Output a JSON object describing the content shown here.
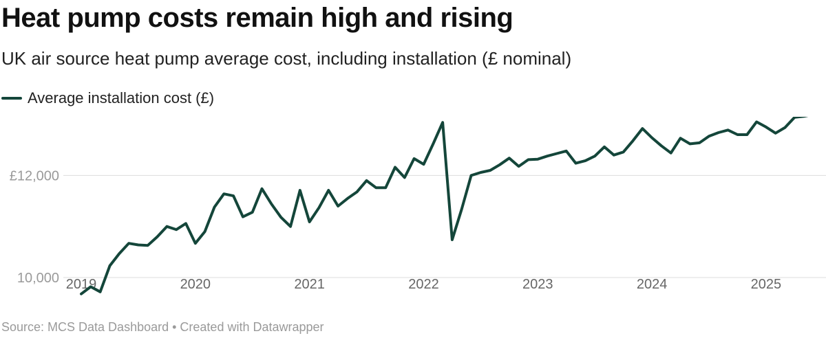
{
  "header": {
    "title": "Heat pump costs remain high and rising",
    "subtitle": "UK air source heat pump average cost, including installation (£ nominal)"
  },
  "legend": {
    "label": "Average installation cost (£)",
    "color": "#14463a"
  },
  "footer": {
    "text": "Source: MCS Data Dashboard • Created with Datawrapper"
  },
  "chart_data": {
    "type": "line",
    "title": "Heat pump costs remain high and rising",
    "subtitle": "UK air source heat pump average cost, including installation (£ nominal)",
    "xlabel": "",
    "ylabel": "",
    "ylim": [
      9650,
      13150
    ],
    "yticks": [
      {
        "value": 10000,
        "label": "10,000"
      },
      {
        "value": 12000,
        "label": "£12,000"
      }
    ],
    "xticks": [
      "2019",
      "2020",
      "2021",
      "2022",
      "2023",
      "2024",
      "2025"
    ],
    "grid": "horizontal",
    "legend_position": "top-left",
    "series": [
      {
        "name": "Average installation cost (£)",
        "color": "#14463a",
        "x": [
          "2019-01",
          "2019-02",
          "2019-03",
          "2019-04",
          "2019-05",
          "2019-06",
          "2019-07",
          "2019-08",
          "2019-09",
          "2019-10",
          "2019-11",
          "2019-12",
          "2020-01",
          "2020-02",
          "2020-03",
          "2020-04",
          "2020-05",
          "2020-06",
          "2020-07",
          "2020-08",
          "2020-09",
          "2020-10",
          "2020-11",
          "2020-12",
          "2021-01",
          "2021-02",
          "2021-03",
          "2021-04",
          "2021-05",
          "2021-06",
          "2021-07",
          "2021-08",
          "2021-09",
          "2021-10",
          "2021-11",
          "2021-12",
          "2022-01",
          "2022-02",
          "2022-03",
          "2022-04",
          "2022-05",
          "2022-06",
          "2022-07",
          "2022-08",
          "2022-09",
          "2022-10",
          "2022-11",
          "2022-12",
          "2023-01",
          "2023-02",
          "2023-03",
          "2023-04",
          "2023-05",
          "2023-06",
          "2023-07",
          "2023-08",
          "2023-09",
          "2023-10",
          "2023-11",
          "2023-12",
          "2024-01",
          "2024-02",
          "2024-03",
          "2024-04",
          "2024-05",
          "2024-06",
          "2024-07",
          "2024-08",
          "2024-09",
          "2024-10",
          "2024-11",
          "2024-12",
          "2025-01",
          "2025-02",
          "2025-03",
          "2025-04",
          "2025-05",
          "2025-06"
        ],
        "values": [
          9680,
          9820,
          9720,
          10230,
          10470,
          10670,
          10640,
          10630,
          10800,
          11000,
          10940,
          11060,
          10670,
          10900,
          11380,
          11640,
          11600,
          11190,
          11280,
          11740,
          11440,
          11180,
          11000,
          11710,
          11090,
          11370,
          11710,
          11400,
          11550,
          11680,
          11900,
          11760,
          11760,
          12160,
          11960,
          12330,
          12220,
          12620,
          13040,
          10740,
          11340,
          12000,
          12060,
          12100,
          12210,
          12340,
          12180,
          12310,
          12320,
          12380,
          12430,
          12480,
          12240,
          12290,
          12380,
          12560,
          12400,
          12460,
          12680,
          12920,
          12740,
          12580,
          12440,
          12730,
          12620,
          12640,
          12770,
          12840,
          12890,
          12800,
          12800,
          13050,
          12950,
          12830,
          12940,
          13140,
          13160,
          13200
        ]
      }
    ]
  }
}
